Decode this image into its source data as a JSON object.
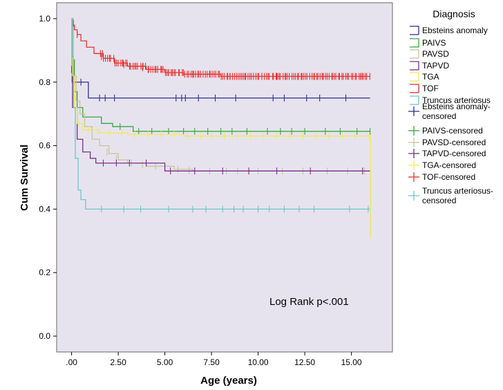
{
  "chart_data": {
    "type": "line",
    "subtype": "kaplan-meier step",
    "xlabel": "Age (years)",
    "ylabel": "Cum Survival",
    "xlim": [
      -0.8,
      17.2
    ],
    "ylim": [
      -0.05,
      1.05
    ],
    "x_ticks": [
      0,
      2.5,
      5,
      7.5,
      10,
      12.5,
      15
    ],
    "x_tick_labels": [
      ".00",
      "2.50",
      "5.00",
      "7.50",
      "10.00",
      "12.50",
      "15.00"
    ],
    "y_ticks": [
      0,
      0.2,
      0.4,
      0.6,
      0.8,
      1.0
    ],
    "y_tick_labels": [
      "0.0",
      "0.2",
      "0.4",
      "0.6",
      "0.8",
      "1.0"
    ],
    "grid": false,
    "legend_title": "Diagnosis",
    "legend_position": "right",
    "annotation": "Log Rank p<.001",
    "legend_entries": [
      {
        "label": "Ebsteins anomaly",
        "marker": "step",
        "color": "#2e2f8e"
      },
      {
        "label": "PAIVS",
        "marker": "step",
        "color": "#3aa63c"
      },
      {
        "label": "PAVSD",
        "marker": "step",
        "color": "#c8c49a"
      },
      {
        "label": "TAPVD",
        "marker": "step",
        "color": "#7a2e86"
      },
      {
        "label": "TGA",
        "marker": "step",
        "color": "#f3ea55"
      },
      {
        "label": "TOF",
        "marker": "step",
        "color": "#e8302e"
      },
      {
        "label": "Truncus arteriosus",
        "marker": "step",
        "color": "#6fc6c8"
      },
      {
        "label": "Ebsteins anomaly-censored",
        "marker": "cross",
        "color": "#2e2f8e"
      },
      {
        "label": "PAIVS-censored",
        "marker": "cross",
        "color": "#3aa63c"
      },
      {
        "label": "PAVSD-censored",
        "marker": "cross",
        "color": "#c8c49a"
      },
      {
        "label": "TAPVD-censored",
        "marker": "cross",
        "color": "#7a2e86"
      },
      {
        "label": "TGA-censored",
        "marker": "cross",
        "color": "#f3ea55"
      },
      {
        "label": "TOF-censored",
        "marker": "cross",
        "color": "#e8302e"
      },
      {
        "label": "Truncus arteriosus-censored",
        "marker": "cross",
        "color": "#6fc6c8"
      }
    ],
    "series": [
      {
        "name": "Ebsteins anomaly",
        "color": "#2e2f8e",
        "steps": [
          [
            0,
            1.0
          ],
          [
            0.03,
            0.8
          ],
          [
            0.9,
            0.75
          ],
          [
            16,
            0.75
          ]
        ],
        "censored": [
          [
            0.5,
            0.8
          ],
          [
            1.5,
            0.75
          ],
          [
            1.8,
            0.75
          ],
          [
            2.3,
            0.75
          ],
          [
            5.6,
            0.75
          ],
          [
            5.9,
            0.75
          ],
          [
            6.1,
            0.75
          ],
          [
            6.8,
            0.75
          ],
          [
            7.7,
            0.75
          ],
          [
            8.8,
            0.75
          ],
          [
            10.8,
            0.75
          ],
          [
            11.4,
            0.75
          ],
          [
            12.6,
            0.75
          ],
          [
            13.3,
            0.75
          ],
          [
            14.7,
            0.75
          ]
        ]
      },
      {
        "name": "PAIVS",
        "color": "#3aa63c",
        "steps": [
          [
            0,
            1.0
          ],
          [
            0.05,
            0.87
          ],
          [
            0.15,
            0.77
          ],
          [
            0.3,
            0.72
          ],
          [
            0.6,
            0.69
          ],
          [
            1.6,
            0.67
          ],
          [
            2.2,
            0.66
          ],
          [
            3.3,
            0.645
          ],
          [
            16,
            0.645
          ]
        ],
        "censored": [
          [
            2.6,
            0.66
          ],
          [
            3.6,
            0.645
          ],
          [
            4.3,
            0.645
          ],
          [
            5.2,
            0.645
          ],
          [
            6.0,
            0.645
          ],
          [
            6.6,
            0.645
          ],
          [
            7.3,
            0.645
          ],
          [
            8.0,
            0.645
          ],
          [
            8.6,
            0.645
          ],
          [
            9.4,
            0.645
          ],
          [
            10.5,
            0.645
          ],
          [
            11.2,
            0.645
          ],
          [
            11.8,
            0.645
          ],
          [
            12.5,
            0.645
          ],
          [
            13.6,
            0.645
          ],
          [
            14.4,
            0.645
          ],
          [
            15.3,
            0.645
          ],
          [
            16,
            0.645
          ]
        ]
      },
      {
        "name": "PAVSD",
        "color": "#c8c49a",
        "steps": [
          [
            0,
            1.0
          ],
          [
            0.1,
            0.82
          ],
          [
            0.25,
            0.74
          ],
          [
            0.45,
            0.7
          ],
          [
            0.7,
            0.66
          ],
          [
            1.1,
            0.62
          ],
          [
            1.5,
            0.6
          ],
          [
            2.0,
            0.575
          ],
          [
            2.5,
            0.555
          ],
          [
            3.0,
            0.545
          ],
          [
            4.0,
            0.535
          ],
          [
            5.5,
            0.525
          ],
          [
            6.5,
            0.52
          ],
          [
            16,
            0.52
          ],
          [
            16.02,
            0.31
          ]
        ],
        "censored": [
          [
            1.9,
            0.58
          ],
          [
            2.4,
            0.56
          ],
          [
            3.2,
            0.545
          ],
          [
            3.8,
            0.54
          ],
          [
            4.5,
            0.535
          ],
          [
            5.7,
            0.525
          ],
          [
            6.3,
            0.522
          ],
          [
            7.4,
            0.52
          ],
          [
            8.3,
            0.52
          ],
          [
            8.9,
            0.52
          ],
          [
            10.0,
            0.52
          ],
          [
            11.3,
            0.52
          ],
          [
            12.4,
            0.52
          ],
          [
            13.7,
            0.52
          ],
          [
            14.8,
            0.52
          ],
          [
            15.7,
            0.52
          ]
        ]
      },
      {
        "name": "TAPVD",
        "color": "#7a2e86",
        "steps": [
          [
            0,
            0.84
          ],
          [
            0.05,
            0.72
          ],
          [
            0.3,
            0.62
          ],
          [
            0.6,
            0.58
          ],
          [
            1.0,
            0.56
          ],
          [
            1.3,
            0.545
          ],
          [
            5.0,
            0.52
          ],
          [
            16,
            0.52
          ]
        ],
        "censored": [
          [
            0,
            0.84
          ],
          [
            1.7,
            0.545
          ],
          [
            2.4,
            0.545
          ],
          [
            3.1,
            0.545
          ],
          [
            4.0,
            0.545
          ],
          [
            5.3,
            0.52
          ],
          [
            6.6,
            0.52
          ],
          [
            8.1,
            0.52
          ],
          [
            9.5,
            0.52
          ],
          [
            11.0,
            0.52
          ],
          [
            12.8,
            0.52
          ],
          [
            15.6,
            0.52
          ]
        ]
      },
      {
        "name": "TGA",
        "color": "#f3ea55",
        "steps": [
          [
            0,
            1.0
          ],
          [
            0.05,
            0.82
          ],
          [
            0.15,
            0.72
          ],
          [
            0.3,
            0.67
          ],
          [
            0.6,
            0.65
          ],
          [
            1.5,
            0.64
          ],
          [
            3.0,
            0.635
          ],
          [
            6.0,
            0.63
          ],
          [
            16,
            0.63
          ],
          [
            16.02,
            0.31
          ]
        ],
        "censored": [
          [
            0.4,
            0.67
          ],
          [
            0.9,
            0.65
          ],
          [
            1.4,
            0.645
          ],
          [
            2.0,
            0.64
          ],
          [
            2.7,
            0.64
          ],
          [
            3.4,
            0.635
          ],
          [
            4.1,
            0.635
          ],
          [
            4.8,
            0.635
          ],
          [
            5.5,
            0.635
          ],
          [
            6.2,
            0.63
          ],
          [
            6.9,
            0.63
          ],
          [
            7.5,
            0.63
          ],
          [
            8.2,
            0.63
          ],
          [
            8.9,
            0.63
          ],
          [
            9.6,
            0.63
          ],
          [
            10.3,
            0.63
          ],
          [
            11.0,
            0.63
          ],
          [
            11.7,
            0.63
          ],
          [
            12.4,
            0.63
          ],
          [
            13.1,
            0.63
          ],
          [
            13.8,
            0.63
          ],
          [
            14.5,
            0.63
          ],
          [
            15.2,
            0.63
          ],
          [
            15.9,
            0.63
          ]
        ]
      },
      {
        "name": "TOF",
        "color": "#e8302e",
        "steps": [
          [
            0,
            1.0
          ],
          [
            0.05,
            0.98
          ],
          [
            0.15,
            0.965
          ],
          [
            0.3,
            0.95
          ],
          [
            0.5,
            0.93
          ],
          [
            0.8,
            0.91
          ],
          [
            1.2,
            0.89
          ],
          [
            1.7,
            0.875
          ],
          [
            2.3,
            0.86
          ],
          [
            3.0,
            0.85
          ],
          [
            4.0,
            0.84
          ],
          [
            5.0,
            0.83
          ],
          [
            6.0,
            0.825
          ],
          [
            8.0,
            0.818
          ],
          [
            16,
            0.818
          ]
        ],
        "censored": [
          [
            0.1,
            0.985
          ],
          [
            0.3,
            0.95
          ],
          [
            1.6,
            0.88
          ],
          [
            2.8,
            0.855
          ],
          [
            3.8,
            0.845
          ],
          [
            5.2,
            0.83
          ],
          [
            6.5,
            0.825
          ],
          [
            8.5,
            0.818
          ],
          [
            11.0,
            0.818
          ],
          [
            13.5,
            0.818
          ],
          [
            15.5,
            0.818
          ]
        ],
        "censored_dense": {
          "from": 1.5,
          "to": 16,
          "count": 150
        }
      },
      {
        "name": "Truncus arteriosus",
        "color": "#6fc6c8",
        "steps": [
          [
            0,
            1.0
          ],
          [
            0.05,
            0.88
          ],
          [
            0.1,
            0.72
          ],
          [
            0.2,
            0.56
          ],
          [
            0.35,
            0.46
          ],
          [
            0.5,
            0.43
          ],
          [
            0.75,
            0.4
          ],
          [
            16,
            0.4
          ]
        ],
        "censored": [
          [
            1.6,
            0.4
          ],
          [
            2.8,
            0.4
          ],
          [
            3.7,
            0.4
          ],
          [
            5.2,
            0.4
          ],
          [
            6.5,
            0.4
          ],
          [
            7.2,
            0.4
          ],
          [
            8.1,
            0.4
          ],
          [
            8.7,
            0.4
          ],
          [
            9.2,
            0.4
          ],
          [
            10.0,
            0.4
          ],
          [
            10.6,
            0.4
          ],
          [
            11.4,
            0.4
          ],
          [
            12.2,
            0.4
          ],
          [
            13.0,
            0.4
          ],
          [
            14.9,
            0.4
          ],
          [
            15.9,
            0.4
          ]
        ]
      }
    ]
  }
}
